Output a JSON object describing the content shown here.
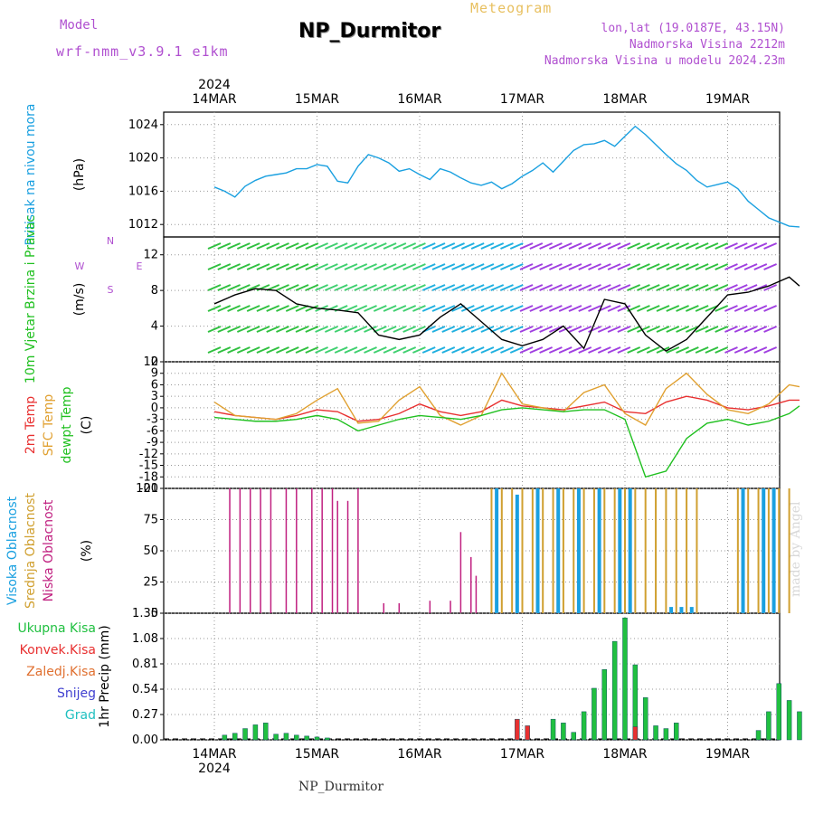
{
  "header": {
    "model_label": "Model",
    "model_name": "wrf-nmm_v3.9.1 e1km",
    "station": "NP_Durmitor",
    "meteogram": "Meteogram",
    "coords": "lon,lat (19.0187E, 43.15N)",
    "elev": "Nadmorska Visina 2212m",
    "model_elev": "Nadmorska Visina u modelu 2024.23m"
  },
  "footer": {
    "station": "NP_Durmitor",
    "credit": "made by Angel"
  },
  "colors": {
    "pressure": "#1aa0e0",
    "temp2m": "#e83030",
    "sfc": "#e0a030",
    "dewpt": "#20c020",
    "low_cloud": "#c02080",
    "mid_cloud": "#d0a030",
    "high_cloud": "#1aa0e0",
    "precip_total": "#20c040",
    "precip_conv": "#e83030",
    "precip_frz": "#e07030",
    "snow": "#4040d0",
    "graupel": "#20c0c0",
    "wind_label": "#20c020",
    "wind_key": "#b050d0"
  },
  "chart_data": [
    {
      "type": "line",
      "title": "Pritisak na nivou mora",
      "ylabel": "(hPa)",
      "x_categories": [
        "14MAR",
        "15MAR",
        "16MAR",
        "17MAR",
        "18MAR",
        "19MAR"
      ],
      "year": "2024",
      "ylim": [
        1010.5,
        1025.5
      ],
      "yticks": [
        1012,
        1016,
        1020,
        1024
      ],
      "series": [
        {
          "name": "Pritisak na nivou mora",
          "x": [
            0.0,
            0.1,
            0.2,
            0.3,
            0.4,
            0.5,
            0.6,
            0.7,
            0.8,
            0.9,
            1.0,
            1.1,
            1.2,
            1.3,
            1.4,
            1.5,
            1.6,
            1.7,
            1.8,
            1.9,
            2.0,
            2.1,
            2.2,
            2.3,
            2.4,
            2.5,
            2.6,
            2.7,
            2.8,
            2.9,
            3.0,
            3.1,
            3.2,
            3.3,
            3.4,
            3.5,
            3.6,
            3.7,
            3.8,
            3.9,
            4.0,
            4.1,
            4.2,
            4.3,
            4.4,
            4.5,
            4.6,
            4.7,
            4.8,
            4.9,
            5.0,
            5.1,
            5.2,
            5.3,
            5.4,
            5.5,
            5.6,
            5.7
          ],
          "values": [
            1016.5,
            1016.0,
            1015.3,
            1016.6,
            1017.3,
            1017.8,
            1018.0,
            1018.2,
            1018.7,
            1018.7,
            1019.2,
            1019.0,
            1017.2,
            1017.0,
            1019.0,
            1020.4,
            1020.0,
            1019.4,
            1018.4,
            1018.7,
            1018.0,
            1017.4,
            1018.7,
            1018.3,
            1017.6,
            1017.0,
            1016.7,
            1017.1,
            1016.3,
            1016.9,
            1017.8,
            1018.5,
            1019.4,
            1018.3,
            1019.6,
            1020.9,
            1021.6,
            1021.7,
            1022.1,
            1021.4,
            1022.6,
            1023.8,
            1022.8,
            1021.6,
            1020.4,
            1019.3,
            1018.5,
            1017.3,
            1016.5,
            1016.8,
            1017.1,
            1016.3,
            1014.8,
            1013.8,
            1012.8,
            1012.3,
            1011.8,
            1011.7
          ]
        }
      ]
    },
    {
      "type": "line",
      "title": "10m Vjetar Brzina i Pravac",
      "ylabel": "(m/s)",
      "ylim": [
        0,
        14
      ],
      "yticks": [
        0,
        4,
        8,
        12
      ],
      "wind_key": [
        "N",
        "W",
        "E",
        "S"
      ],
      "series": [
        {
          "name": "wind speed",
          "x": [
            0.0,
            0.2,
            0.4,
            0.6,
            0.8,
            1.0,
            1.2,
            1.4,
            1.6,
            1.8,
            2.0,
            2.2,
            2.4,
            2.6,
            2.8,
            3.0,
            3.2,
            3.4,
            3.6,
            3.8,
            4.0,
            4.2,
            4.4,
            4.6,
            4.8,
            5.0,
            5.2,
            5.4,
            5.6,
            5.7
          ],
          "values": [
            6.5,
            7.5,
            8.2,
            8.0,
            6.5,
            6.0,
            5.8,
            5.5,
            3.0,
            2.5,
            3.0,
            5.0,
            6.5,
            4.5,
            2.5,
            1.8,
            2.5,
            4.0,
            1.5,
            7.0,
            6.5,
            3.0,
            1.2,
            2.5,
            5.0,
            7.5,
            7.8,
            8.5,
            9.5,
            8.5
          ]
        }
      ]
    },
    {
      "type": "line",
      "title": "2m Temp / SFC Temp / dewpt Temp",
      "ylabel": "(C)",
      "ylim": [
        -21,
        12
      ],
      "yticks": [
        12,
        9,
        6,
        3,
        0,
        -3,
        -6,
        -9,
        -12,
        -15,
        -18,
        -21
      ],
      "series": [
        {
          "name": "2m Temp",
          "x": [
            0.0,
            0.2,
            0.4,
            0.6,
            0.8,
            1.0,
            1.2,
            1.4,
            1.6,
            1.8,
            2.0,
            2.2,
            2.4,
            2.6,
            2.8,
            3.0,
            3.2,
            3.4,
            3.6,
            3.8,
            4.0,
            4.2,
            4.4,
            4.6,
            4.8,
            5.0,
            5.2,
            5.4,
            5.6,
            5.7
          ],
          "values": [
            -1.0,
            -2.0,
            -2.5,
            -3.0,
            -2.0,
            -0.5,
            -1.0,
            -3.5,
            -3.0,
            -1.5,
            1.0,
            -1.0,
            -2.0,
            -1.0,
            2.0,
            0.5,
            0.0,
            -0.5,
            0.5,
            1.5,
            -1.0,
            -1.5,
            1.5,
            3.0,
            2.0,
            0.0,
            -0.5,
            0.5,
            2.0,
            2.0
          ]
        },
        {
          "name": "SFC Temp",
          "x": [
            0.0,
            0.2,
            0.4,
            0.6,
            0.8,
            1.0,
            1.2,
            1.4,
            1.6,
            1.8,
            2.0,
            2.2,
            2.4,
            2.6,
            2.8,
            3.0,
            3.2,
            3.4,
            3.6,
            3.8,
            4.0,
            4.2,
            4.4,
            4.6,
            4.8,
            5.0,
            5.2,
            5.4,
            5.6,
            5.7
          ],
          "values": [
            1.5,
            -2.0,
            -2.5,
            -3.0,
            -1.5,
            2.0,
            5.0,
            -4.0,
            -3.5,
            2.0,
            5.5,
            -2.0,
            -4.5,
            -2.0,
            9.0,
            1.0,
            0.0,
            -1.0,
            4.0,
            6.0,
            -1.5,
            -4.5,
            5.0,
            9.0,
            3.5,
            -0.5,
            -1.5,
            1.0,
            6.0,
            5.5
          ]
        },
        {
          "name": "dewpt Temp",
          "x": [
            0.0,
            0.2,
            0.4,
            0.6,
            0.8,
            1.0,
            1.2,
            1.4,
            1.6,
            1.8,
            2.0,
            2.2,
            2.4,
            2.6,
            2.8,
            3.0,
            3.2,
            3.4,
            3.6,
            3.8,
            4.0,
            4.2,
            4.4,
            4.6,
            4.8,
            5.0,
            5.2,
            5.4,
            5.6,
            5.7
          ],
          "values": [
            -2.5,
            -3.0,
            -3.5,
            -3.5,
            -3.0,
            -2.0,
            -3.0,
            -6.0,
            -4.5,
            -3.0,
            -2.0,
            -2.5,
            -3.0,
            -2.0,
            -0.5,
            0.0,
            -0.5,
            -1.0,
            -0.5,
            -0.5,
            -3.0,
            -18.0,
            -16.5,
            -8.0,
            -4.0,
            -3.0,
            -4.5,
            -3.5,
            -1.5,
            0.5
          ]
        }
      ]
    },
    {
      "type": "bar",
      "title": "Visoka Oblacnost / Srednja Oblacnost / Niska Oblacnost",
      "ylabel": "(%)",
      "ylim": [
        0,
        100
      ],
      "yticks": [
        0,
        25,
        50,
        75,
        100
      ],
      "series": [
        {
          "name": "Niska Oblacnost",
          "x": [
            0.15,
            0.25,
            0.35,
            0.45,
            0.55,
            0.7,
            0.8,
            0.95,
            1.05,
            1.15,
            1.2,
            1.3,
            1.4,
            1.65,
            1.8,
            2.1,
            2.3,
            2.4,
            2.5,
            2.55
          ],
          "values": [
            100,
            100,
            100,
            100,
            100,
            100,
            100,
            100,
            100,
            100,
            90,
            90,
            100,
            8,
            8,
            10,
            10,
            65,
            45,
            30
          ]
        },
        {
          "name": "Srednja Oblacnost",
          "x": [
            2.7,
            2.8,
            2.9,
            3.0,
            3.1,
            3.2,
            3.3,
            3.4,
            3.5,
            3.6,
            3.7,
            3.8,
            3.9,
            4.0,
            4.1,
            4.2,
            4.3,
            4.4,
            4.5,
            4.6,
            4.7,
            5.1,
            5.2,
            5.3,
            5.4,
            5.5,
            5.6
          ],
          "values": [
            100,
            100,
            100,
            100,
            100,
            100,
            100,
            100,
            100,
            100,
            100,
            100,
            100,
            100,
            100,
            100,
            100,
            100,
            100,
            100,
            100,
            100,
            100,
            100,
            100,
            100,
            100
          ]
        },
        {
          "name": "Visoka Oblacnost",
          "x": [
            2.75,
            2.95,
            3.15,
            3.35,
            3.55,
            3.75,
            3.95,
            4.05,
            4.45,
            4.55,
            4.65,
            5.15,
            5.35,
            5.45
          ],
          "values": [
            100,
            95,
            100,
            100,
            100,
            100,
            100,
            100,
            5,
            5,
            5,
            100,
            100,
            100
          ]
        }
      ]
    },
    {
      "type": "bar",
      "title": "1hr Precip",
      "ylabel": "1hr Precip (mm)",
      "ylim": [
        0,
        1.35
      ],
      "yticks": [
        0,
        0.27,
        0.54,
        0.81,
        1.08,
        1.35
      ],
      "legend": [
        "Ukupna Kisa",
        "Konvek.Kisa",
        "Zaledj.Kisa",
        "Snijeg",
        "Grad"
      ],
      "series": [
        {
          "name": "Ukupna Kisa",
          "x": [
            0.1,
            0.2,
            0.3,
            0.4,
            0.5,
            0.6,
            0.7,
            0.8,
            0.9,
            1.0,
            1.1,
            3.3,
            3.4,
            3.5,
            3.6,
            3.7,
            3.8,
            3.9,
            4.0,
            4.1,
            4.2,
            4.3,
            4.4,
            4.5,
            5.3,
            5.4,
            5.5,
            5.6,
            5.7
          ],
          "values": [
            0.05,
            0.07,
            0.12,
            0.16,
            0.18,
            0.06,
            0.07,
            0.05,
            0.04,
            0.03,
            0.02,
            0.22,
            0.18,
            0.08,
            0.3,
            0.55,
            0.75,
            1.05,
            1.3,
            0.8,
            0.45,
            0.15,
            0.12,
            0.18,
            0.1,
            0.3,
            0.6,
            0.42,
            0.3
          ]
        },
        {
          "name": "Konvek.Kisa",
          "x": [
            2.95,
            3.05,
            4.1
          ],
          "values": [
            0.22,
            0.15,
            0.14
          ]
        }
      ]
    }
  ]
}
